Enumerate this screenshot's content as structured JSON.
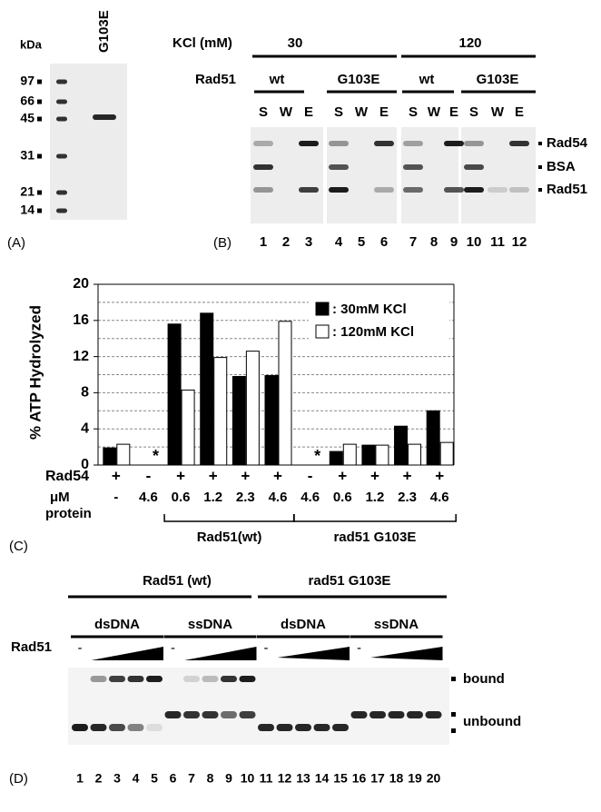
{
  "panel_a": {
    "label": "(A)",
    "unit": "kDa",
    "sample": "G103E",
    "markers": [
      97,
      66,
      45,
      31,
      21,
      14
    ]
  },
  "panel_b": {
    "label": "(B)",
    "kcl_label": "KCl (mM)",
    "kcl": [
      30,
      120
    ],
    "rad51_label": "Rad51",
    "rad51": [
      "wt",
      "G103E",
      "wt",
      "G103E"
    ],
    "fractions": [
      "S",
      "W",
      "E"
    ],
    "bands": [
      "Rad54",
      "BSA",
      "Rad51"
    ],
    "lanes": [
      1,
      2,
      3,
      4,
      5,
      6,
      7,
      8,
      9,
      10,
      11,
      12
    ]
  },
  "chart_data": {
    "type": "bar",
    "label": "(C)",
    "ylabel": "% ATP Hydrolyzed",
    "categories": [
      "-",
      "4.6",
      "0.6",
      "1.2",
      "2.3",
      "4.6",
      "4.6",
      "0.6",
      "1.2",
      "2.3",
      "4.6"
    ],
    "series": [
      {
        "name": ": 30mM KCl",
        "color": "#000000",
        "values": [
          1.9,
          0,
          15.6,
          16.8,
          9.8,
          9.9,
          0,
          1.5,
          2.2,
          4.3,
          6.0
        ]
      },
      {
        "name": ": 120mM KCl",
        "color": "#ffffff",
        "values": [
          2.3,
          0,
          8.3,
          11.9,
          12.6,
          15.9,
          0,
          2.3,
          2.2,
          2.3,
          2.5
        ]
      }
    ],
    "ylim": [
      0,
      20
    ],
    "yticks": [
      0,
      4,
      8,
      12,
      16,
      20
    ],
    "grid": true,
    "legend": "upper right",
    "annotation": "*",
    "rad54_label": "Rad54",
    "rad54": [
      "+",
      "-",
      "+",
      "+",
      "+",
      "+",
      "-",
      "+",
      "+",
      "+",
      "+"
    ],
    "protein_label": [
      "μM",
      "protein"
    ],
    "groups": [
      "Rad51(wt)",
      "rad51 G103E"
    ]
  },
  "panel_d": {
    "label": "(D)",
    "groups": [
      "Rad51 (wt)",
      "rad51 G103E"
    ],
    "substrates": [
      "dsDNA",
      "ssDNA",
      "dsDNA",
      "ssDNA"
    ],
    "titrant": "Rad51",
    "minus": "-",
    "states": [
      "bound",
      "unbound"
    ],
    "lanes": [
      1,
      2,
      3,
      4,
      5,
      6,
      7,
      8,
      9,
      10,
      11,
      12,
      13,
      14,
      15,
      16,
      17,
      18,
      19,
      20
    ]
  }
}
